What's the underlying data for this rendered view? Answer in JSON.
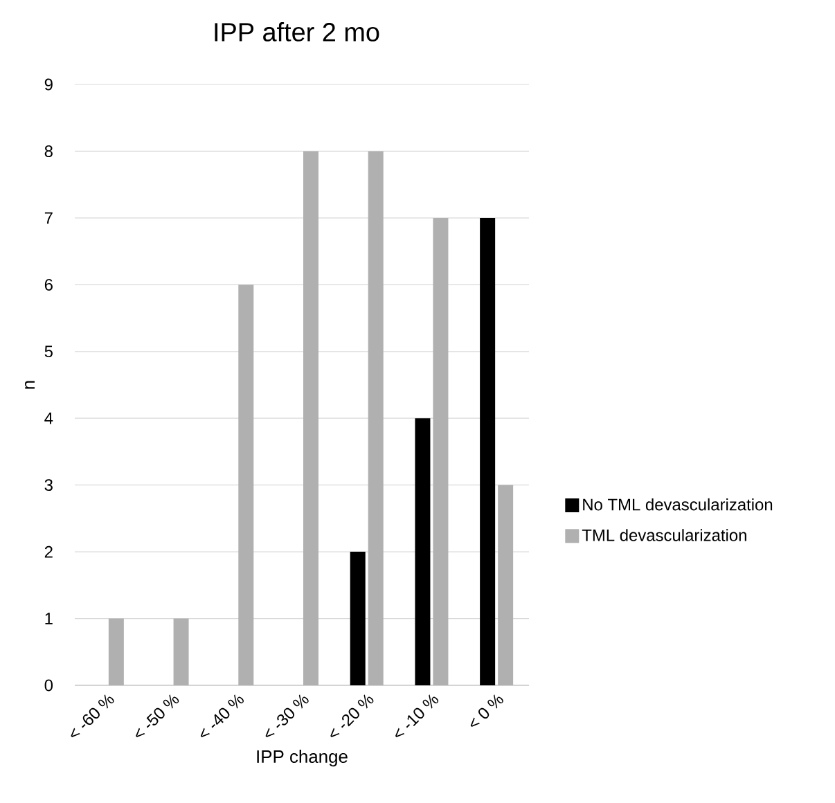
{
  "chart_data": {
    "type": "bar",
    "title": "IPP after 2 mo",
    "xlabel": "IPP change",
    "ylabel": "n",
    "categories": [
      "< -60 %",
      "< -50 %",
      "< -40 %",
      "< -30 %",
      "< -20 %",
      "< -10 %",
      "< 0 %"
    ],
    "series": [
      {
        "name": "No TML devascularization",
        "color": "#000000",
        "values": [
          0,
          0,
          0,
          0,
          2,
          4,
          7
        ]
      },
      {
        "name": "TML devascularization",
        "color": "#b0b0b0",
        "values": [
          1,
          1,
          6,
          8,
          8,
          7,
          3
        ]
      }
    ],
    "ylim": [
      0,
      9
    ],
    "yticks": [
      0,
      1,
      2,
      3,
      4,
      5,
      6,
      7,
      8,
      9
    ],
    "grid": "y",
    "legend": "right"
  }
}
